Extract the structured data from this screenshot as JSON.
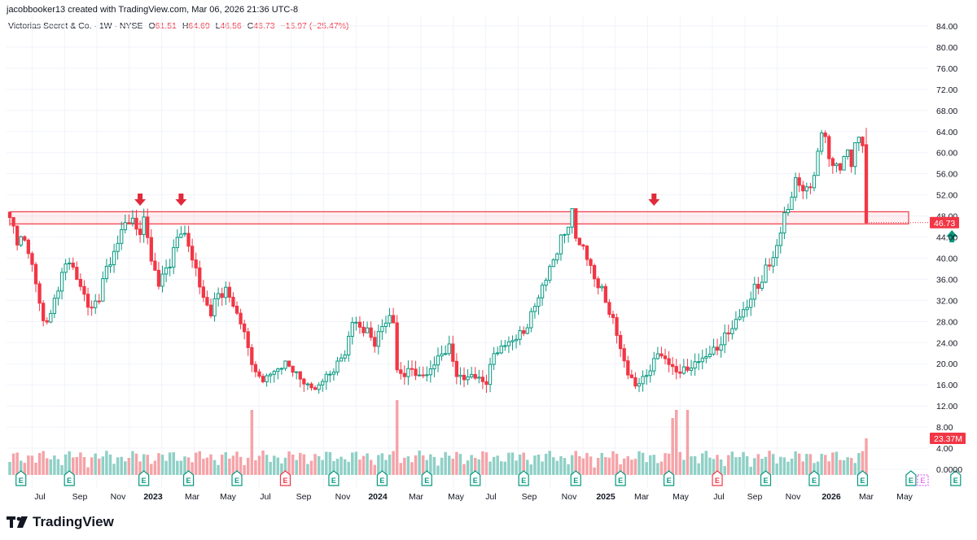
{
  "header": {
    "attribution": "jacobbooker13 created with TradingView.com, Mar 06, 2026 21:36 UTC-8",
    "symbol_line": "Victorias Secret & Co. · 1W · NYSE",
    "o_label": "O",
    "o_value": "61.51",
    "h_label": "H",
    "h_value": "64.69",
    "l_label": "L",
    "l_value": "46.56",
    "c_label": "C",
    "c_value": "46.73",
    "change": "−15.97 (−25.47%)"
  },
  "footer": {
    "brand": "TradingView"
  },
  "colors": {
    "up": "#089981",
    "down": "#f23645",
    "vol_up": "#8fd0c6",
    "vol_down": "#f5a3a8",
    "zone": "#f23645"
  },
  "chart_data": {
    "type": "candlestick",
    "title": "Victorias Secret & Co. · 1W · NYSE",
    "ylim": [
      0,
      86
    ],
    "y_ticks": [
      "84.00",
      "80.00",
      "76.00",
      "72.00",
      "68.00",
      "64.00",
      "60.00",
      "56.00",
      "52.00",
      "48.00",
      "44.00",
      "40.00",
      "36.00",
      "32.00",
      "28.00",
      "24.00",
      "20.00",
      "16.00",
      "12.00",
      "8.00",
      "4.00",
      "0.0000"
    ],
    "x_ticks": [
      "Jul",
      "Sep",
      "Nov",
      "2023",
      "Mar",
      "May",
      "Jul",
      "Sep",
      "Nov",
      "2024",
      "Mar",
      "May",
      "Jul",
      "Sep",
      "Nov",
      "2025",
      "Mar",
      "May",
      "Jul",
      "Sep",
      "Nov",
      "2026",
      "Mar",
      "May"
    ],
    "last_price_label": "46.73",
    "volume_label": "23.37M",
    "earnings_marker": "E",
    "resistance_zone": [
      46.5,
      48.8
    ],
    "arrows": [
      {
        "direction": "down",
        "week": 35
      },
      {
        "direction": "down",
        "week": 46
      },
      {
        "direction": "down",
        "week": 173
      },
      {
        "direction": "up",
        "week": 253
      }
    ],
    "earnings_weeks": [
      3,
      16,
      36,
      48,
      61,
      74,
      87,
      100,
      112,
      125,
      138,
      152,
      164,
      177,
      190,
      203,
      216,
      229,
      242,
      254
    ],
    "closes_keypoints": [
      [
        0,
        47
      ],
      [
        2,
        44
      ],
      [
        5,
        42
      ],
      [
        7,
        35
      ],
      [
        9,
        28
      ],
      [
        11,
        29
      ],
      [
        13,
        35
      ],
      [
        16,
        40
      ],
      [
        18,
        36
      ],
      [
        20,
        33
      ],
      [
        22,
        30
      ],
      [
        24,
        33
      ],
      [
        26,
        38
      ],
      [
        28,
        41
      ],
      [
        30,
        45
      ],
      [
        32,
        48
      ],
      [
        34,
        45
      ],
      [
        36,
        47
      ],
      [
        38,
        40
      ],
      [
        40,
        35
      ],
      [
        42,
        38
      ],
      [
        44,
        41
      ],
      [
        46,
        46
      ],
      [
        48,
        42
      ],
      [
        50,
        38
      ],
      [
        52,
        32
      ],
      [
        54,
        30
      ],
      [
        56,
        33
      ],
      [
        58,
        34
      ],
      [
        60,
        31
      ],
      [
        62,
        28
      ],
      [
        64,
        23
      ],
      [
        66,
        18
      ],
      [
        68,
        17
      ],
      [
        70,
        18
      ],
      [
        72,
        19
      ],
      [
        74,
        20
      ],
      [
        76,
        19
      ],
      [
        78,
        17
      ],
      [
        80,
        16
      ],
      [
        82,
        15
      ],
      [
        84,
        17
      ],
      [
        86,
        18
      ],
      [
        88,
        20
      ],
      [
        90,
        22
      ],
      [
        92,
        28
      ],
      [
        94,
        27
      ],
      [
        96,
        26
      ],
      [
        98,
        24
      ],
      [
        100,
        27
      ],
      [
        102,
        29
      ],
      [
        103,
        28
      ],
      [
        104,
        18.5
      ],
      [
        106,
        18
      ],
      [
        108,
        19
      ],
      [
        110,
        17.5
      ],
      [
        112,
        18
      ],
      [
        114,
        20
      ],
      [
        116,
        22
      ],
      [
        118,
        23
      ],
      [
        120,
        18
      ],
      [
        122,
        17
      ],
      [
        124,
        18
      ],
      [
        126,
        17
      ],
      [
        128,
        16.5
      ],
      [
        130,
        22
      ],
      [
        132,
        23
      ],
      [
        134,
        24
      ],
      [
        136,
        25
      ],
      [
        138,
        26
      ],
      [
        140,
        29
      ],
      [
        142,
        33
      ],
      [
        144,
        36
      ],
      [
        146,
        40
      ],
      [
        148,
        43
      ],
      [
        150,
        47
      ],
      [
        151,
        48
      ],
      [
        152,
        44
      ],
      [
        154,
        42
      ],
      [
        156,
        38
      ],
      [
        158,
        35
      ],
      [
        160,
        32
      ],
      [
        162,
        28
      ],
      [
        164,
        23
      ],
      [
        166,
        18
      ],
      [
        168,
        16
      ],
      [
        170,
        17
      ],
      [
        172,
        19
      ],
      [
        174,
        22
      ],
      [
        176,
        21
      ],
      [
        178,
        19
      ],
      [
        180,
        18.5
      ],
      [
        182,
        19
      ],
      [
        184,
        20
      ],
      [
        186,
        21
      ],
      [
        188,
        22
      ],
      [
        190,
        23
      ],
      [
        192,
        25
      ],
      [
        194,
        27
      ],
      [
        196,
        29
      ],
      [
        198,
        31
      ],
      [
        200,
        34
      ],
      [
        202,
        36
      ],
      [
        204,
        39
      ],
      [
        206,
        42
      ],
      [
        208,
        48
      ],
      [
        210,
        52
      ],
      [
        212,
        55
      ],
      [
        214,
        52
      ],
      [
        216,
        56
      ],
      [
        218,
        64
      ],
      [
        220,
        60
      ],
      [
        222,
        56
      ],
      [
        224,
        60
      ],
      [
        226,
        58
      ],
      [
        227,
        62
      ],
      [
        228,
        63
      ],
      [
        229,
        61.5
      ],
      [
        230,
        46.73
      ]
    ],
    "n_weeks": 231,
    "last_bar": {
      "open": 61.51,
      "high": 64.69,
      "low": 46.56,
      "close": 46.73,
      "volume_m": 23.37
    }
  }
}
